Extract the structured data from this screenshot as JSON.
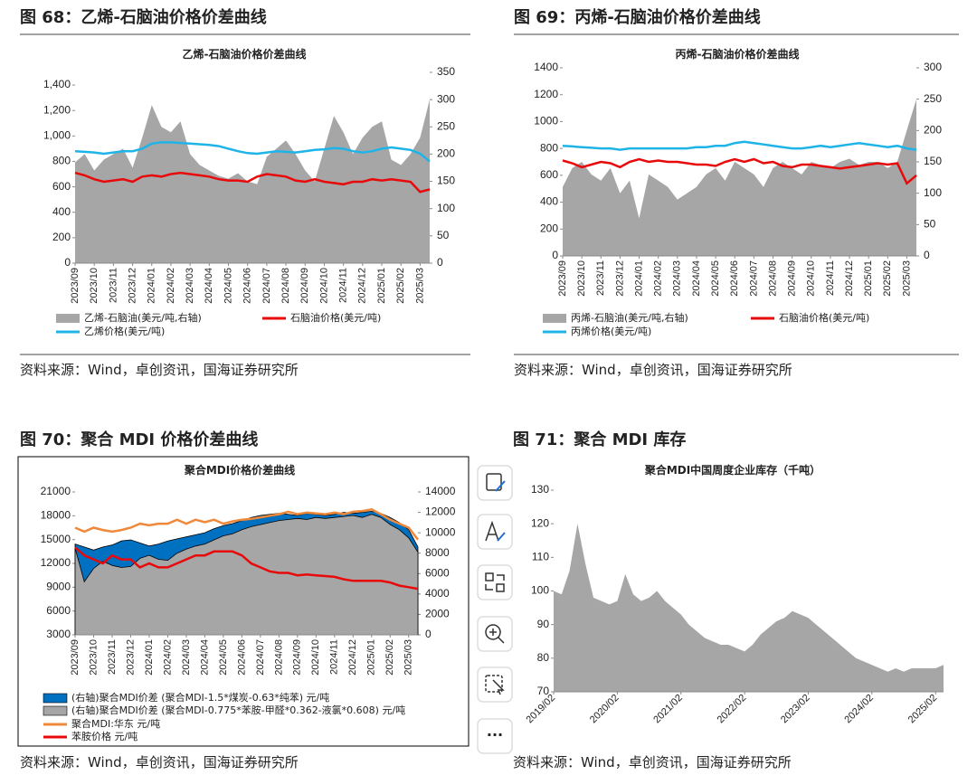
{
  "chart_data": [
    {
      "type": "combo",
      "figure_title": "图 68：乙烯-石脑油价格价差曲线",
      "title": "乙烯-石脑油价格价差曲线",
      "source": "资料来源：Wind，卓创资讯，国海证券研究所",
      "categories": [
        "2023/09",
        null,
        "2023/10",
        null,
        "2023/11",
        null,
        "2023/12",
        null,
        "2024/01",
        null,
        "2024/02",
        null,
        "2024/03",
        null,
        "2024/04",
        null,
        "2024/05",
        null,
        "2024/06",
        null,
        "2024/07",
        null,
        "2024/08",
        null,
        "2024/09",
        null,
        "2024/10",
        null,
        "2024/11",
        null,
        "2024/12",
        null,
        "2025/01",
        null,
        "2025/02",
        null,
        "2025/03",
        null
      ],
      "ylim": [
        0,
        1500
      ],
      "yticks": [
        0,
        200,
        400,
        600,
        800,
        {
          "value": 1000,
          "label": "1,000"
        },
        {
          "value": 1200,
          "label": "1,200"
        },
        {
          "value": 1400,
          "label": "1,400"
        }
      ],
      "y2lim": [
        0,
        350
      ],
      "y2ticks": [
        0,
        50,
        100,
        150,
        200,
        250,
        300,
        350
      ],
      "series": [
        {
          "name": "乙烯-石脑油(美元/吨,右轴)",
          "kind": "area",
          "axis": "y2",
          "color": "#a6a6a6",
          "values": [
            185,
            200,
            170,
            190,
            200,
            210,
            175,
            230,
            290,
            250,
            240,
            260,
            200,
            180,
            170,
            160,
            155,
            165,
            150,
            145,
            195,
            210,
            225,
            200,
            170,
            150,
            210,
            270,
            240,
            200,
            230,
            250,
            260,
            190,
            180,
            200,
            230,
            300
          ]
        },
        {
          "name": "石脑油价格(美元/吨)",
          "kind": "line",
          "color": "#e8090b",
          "values": [
            710,
            690,
            660,
            640,
            650,
            660,
            640,
            680,
            690,
            680,
            700,
            710,
            700,
            690,
            680,
            660,
            650,
            650,
            640,
            680,
            700,
            690,
            680,
            650,
            640,
            660,
            640,
            630,
            620,
            640,
            640,
            660,
            650,
            660,
            650,
            640,
            560,
            580
          ]
        },
        {
          "name": "乙烯价格(美元/吨)",
          "kind": "line",
          "color": "#1fb4e8",
          "values": [
            880,
            875,
            870,
            860,
            870,
            880,
            880,
            900,
            940,
            950,
            950,
            945,
            940,
            935,
            930,
            920,
            900,
            880,
            865,
            860,
            870,
            880,
            875,
            870,
            880,
            890,
            895,
            905,
            900,
            880,
            870,
            880,
            900,
            910,
            900,
            890,
            860,
            800
          ]
        }
      ]
    },
    {
      "type": "combo",
      "figure_title": "图 69：丙烯-石脑油价格价差曲线",
      "title": "丙烯-石脑油价格价差曲线",
      "source": "资料来源：Wind，卓创资讯，国海证券研究所",
      "categories": [
        "2023/09",
        null,
        "2023/10",
        null,
        "2023/11",
        null,
        "2023/12",
        null,
        "2024/01",
        null,
        "2024/02",
        null,
        "2024/03",
        null,
        "2024/04",
        null,
        "2024/05",
        null,
        "2024/06",
        null,
        "2024/07",
        null,
        "2024/08",
        null,
        "2024/09",
        null,
        "2024/10",
        null,
        "2024/11",
        null,
        "2024/12",
        null,
        "2025/01",
        null,
        "2025/02",
        null,
        "2025/03",
        null
      ],
      "ylim": [
        0,
        1400
      ],
      "yticks": [
        0,
        200,
        400,
        600,
        800,
        1000,
        1200,
        1400
      ],
      "y2lim": [
        0,
        300
      ],
      "y2ticks": [
        0,
        50,
        100,
        150,
        200,
        250,
        300
      ],
      "series": [
        {
          "name": "丙烯-石脑油(美元/吨,右轴)",
          "kind": "area",
          "axis": "y2",
          "color": "#a6a6a6",
          "values": [
            110,
            140,
            150,
            130,
            120,
            140,
            100,
            120,
            60,
            130,
            120,
            110,
            90,
            100,
            110,
            130,
            140,
            120,
            150,
            140,
            130,
            110,
            140,
            150,
            140,
            130,
            150,
            145,
            140,
            150,
            155,
            145,
            150,
            150,
            140,
            150,
            200,
            250
          ]
        },
        {
          "name": "石脑油价格(美元/吨)",
          "kind": "line",
          "color": "#e8090b",
          "values": [
            710,
            690,
            660,
            680,
            700,
            690,
            660,
            700,
            720,
            700,
            710,
            700,
            700,
            690,
            680,
            680,
            670,
            700,
            720,
            700,
            720,
            690,
            700,
            670,
            660,
            680,
            680,
            670,
            660,
            650,
            660,
            670,
            680,
            690,
            680,
            690,
            540,
            600
          ]
        },
        {
          "name": "丙烯价格(美元/吨)",
          "kind": "line",
          "color": "#1fb4e8",
          "values": [
            820,
            815,
            810,
            805,
            800,
            800,
            790,
            800,
            800,
            800,
            800,
            800,
            800,
            800,
            810,
            810,
            820,
            820,
            840,
            850,
            840,
            830,
            820,
            810,
            800,
            800,
            810,
            820,
            810,
            820,
            830,
            840,
            830,
            820,
            810,
            820,
            800,
            790
          ]
        }
      ]
    },
    {
      "type": "combo",
      "figure_title": "图 70：聚合 MDI 价格价差曲线",
      "title": "聚合MDI价格价差曲线",
      "source": "资料来源：Wind，卓创资讯，国海证券研究所",
      "categories": [
        "2023/09",
        null,
        "2023/10",
        null,
        "2023/11",
        null,
        "2023/12",
        null,
        "2024/01",
        null,
        "2024/02",
        null,
        "2024/03",
        null,
        "2024/04",
        null,
        "2024/05",
        null,
        "2024/06",
        null,
        "2024/07",
        null,
        "2024/08",
        null,
        "2024/09",
        null,
        "2024/10",
        null,
        "2024/11",
        null,
        "2024/12",
        null,
        "2025/01",
        null,
        "2025/02",
        null,
        "2025/03",
        null
      ],
      "ylim": [
        3000,
        21000
      ],
      "yticks": [
        3000,
        6000,
        9000,
        12000,
        15000,
        18000,
        21000
      ],
      "y2lim": [
        0,
        14000
      ],
      "y2ticks": [
        0,
        2000,
        4000,
        6000,
        8000,
        10000,
        12000,
        14000
      ],
      "series": [
        {
          "name": "(右轴)聚合MDI价差 (聚合MDI-1.5*煤炭-0.63*纯苯) 元/吨",
          "kind": "area",
          "axis": "y2",
          "color": "#0070c0",
          "outline": "#000000",
          "values": [
            8900,
            8600,
            8300,
            8600,
            8800,
            9200,
            9300,
            9000,
            8700,
            8900,
            9200,
            9400,
            9600,
            9800,
            10000,
            10400,
            10700,
            10900,
            11200,
            11500,
            11700,
            11800,
            11900,
            11800,
            11700,
            11900,
            11800,
            11700,
            11800,
            12000,
            11900,
            12000,
            12100,
            11900,
            11500,
            11000,
            10300,
            8600
          ]
        },
        {
          "name": "(右轴)聚合MDI价差 (聚合MDI-0.775*苯胺-甲醛*0.362-液氯*0.608) 元/吨",
          "kind": "area",
          "axis": "y2",
          "color": "#a6a6a6",
          "outline": "#000000",
          "values": [
            8500,
            5200,
            6500,
            7200,
            6800,
            6600,
            6700,
            7500,
            7800,
            7400,
            7300,
            8000,
            8400,
            8700,
            8900,
            9300,
            9700,
            9900,
            10300,
            10600,
            10800,
            11000,
            11200,
            11300,
            11400,
            11300,
            11500,
            11400,
            11500,
            11600,
            11700,
            11500,
            11800,
            11500,
            10800,
            10300,
            9500,
            8100
          ]
        },
        {
          "name": "聚合MDI:华东 元/吨",
          "kind": "line",
          "color": "#f0883a",
          "values": [
            16500,
            16000,
            16500,
            16200,
            16000,
            16200,
            16500,
            17000,
            16800,
            17000,
            17000,
            17500,
            17000,
            17500,
            17200,
            17500,
            17000,
            17300,
            17500,
            17600,
            17800,
            18000,
            18200,
            18500,
            18200,
            18400,
            18300,
            18200,
            18400,
            18200,
            18500,
            18600,
            18800,
            18200,
            17500,
            17000,
            16500,
            15000
          ]
        },
        {
          "name": "苯胺价格 元/吨",
          "kind": "line",
          "color": "#e8090b",
          "values": [
            14000,
            13000,
            12500,
            12000,
            13000,
            12500,
            12500,
            11500,
            12000,
            11500,
            11500,
            12000,
            12500,
            13000,
            13000,
            13500,
            13500,
            13500,
            13000,
            12000,
            11500,
            11000,
            10800,
            10800,
            10500,
            10600,
            10500,
            10400,
            10300,
            10000,
            9800,
            9800,
            9800,
            9800,
            9600,
            9200,
            9000,
            8800
          ]
        }
      ]
    },
    {
      "type": "area",
      "figure_title": "图 71：聚合 MDI 库存",
      "title": "聚合MDI中国周度企业库存（千吨）",
      "source": "资料来源：Wind，卓创资讯，国海证券研究所",
      "categories": [
        "2019/02",
        null,
        null,
        null,
        null,
        null,
        null,
        null,
        "2020/02",
        null,
        null,
        null,
        null,
        null,
        null,
        null,
        "2021/02",
        null,
        null,
        null,
        null,
        null,
        null,
        null,
        "2022/02",
        null,
        null,
        null,
        null,
        null,
        null,
        null,
        "2023/02",
        null,
        null,
        null,
        null,
        null,
        null,
        null,
        "2024/02",
        null,
        null,
        null,
        null,
        null,
        null,
        null,
        "2025/02",
        null
      ],
      "ylim": [
        70,
        130
      ],
      "yticks": [
        70,
        80,
        90,
        100,
        110,
        120,
        130
      ],
      "series": [
        {
          "kind": "area",
          "color": "#a6a6a6",
          "values": [
            100,
            99,
            106,
            120,
            108,
            98,
            97,
            96,
            97,
            105,
            99,
            97,
            98,
            100,
            97,
            95,
            93,
            90,
            88,
            86,
            85,
            84,
            84,
            83,
            82,
            84,
            87,
            89,
            91,
            92,
            94,
            93,
            92,
            90,
            88,
            86,
            84,
            82,
            80,
            79,
            78,
            77,
            76,
            77,
            76,
            77,
            77,
            77,
            77,
            78
          ]
        }
      ]
    }
  ],
  "toolbar": {
    "more": "···"
  }
}
